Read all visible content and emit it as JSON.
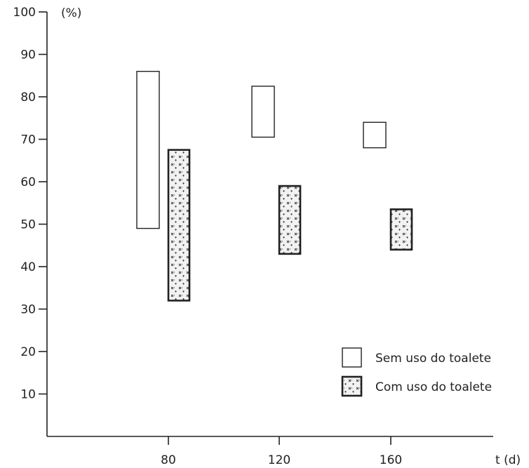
{
  "chart_data": {
    "type": "bar",
    "chart_subtype": "floating-range-bar",
    "title": "",
    "xlabel": "t (d)",
    "ylabel": "(%)",
    "ylim": [
      0,
      100
    ],
    "yticks": [
      10,
      20,
      30,
      40,
      50,
      60,
      70,
      80,
      90,
      100
    ],
    "ytick_labels": [
      "10",
      "20",
      "30",
      "40",
      "50",
      "60",
      "70",
      "80",
      "90",
      "100"
    ],
    "categories": [
      "80",
      "120",
      "160"
    ],
    "grid": false,
    "legend_position": "bottom-right",
    "series": [
      {
        "name": "Sem uso do toalete",
        "style": "hollow",
        "fill": "#ffffff",
        "ranges": [
          [
            49,
            86
          ],
          [
            70.5,
            82.5
          ],
          [
            68,
            74
          ]
        ]
      },
      {
        "name": "Com uso do toalete",
        "style": "stippled",
        "fill": "#f2f2f2",
        "ranges": [
          [
            32,
            67.5
          ],
          [
            43,
            59
          ],
          [
            44,
            53.5
          ]
        ]
      }
    ]
  }
}
